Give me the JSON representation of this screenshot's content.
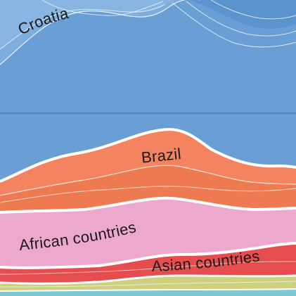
{
  "chart_data": {
    "type": "area",
    "title": "",
    "xlabel": "",
    "ylabel": "",
    "grid": false,
    "legend": "none",
    "series": [
      {
        "name": "Croatia",
        "color": "#6a9fd6"
      },
      {
        "name": "Brazil",
        "color": "#f4845f"
      },
      {
        "name": "African countries",
        "color": "#eda9cd"
      },
      {
        "name": "Asian countries",
        "color": "#e64d4f"
      },
      {
        "name": "",
        "color": "#ccd07f"
      },
      {
        "name": "",
        "color": "#7fc9d4"
      }
    ],
    "labels": {
      "croatia": "Croatia",
      "brazil": "Brazil",
      "african": "African countries",
      "asian": "Asian countries"
    }
  }
}
